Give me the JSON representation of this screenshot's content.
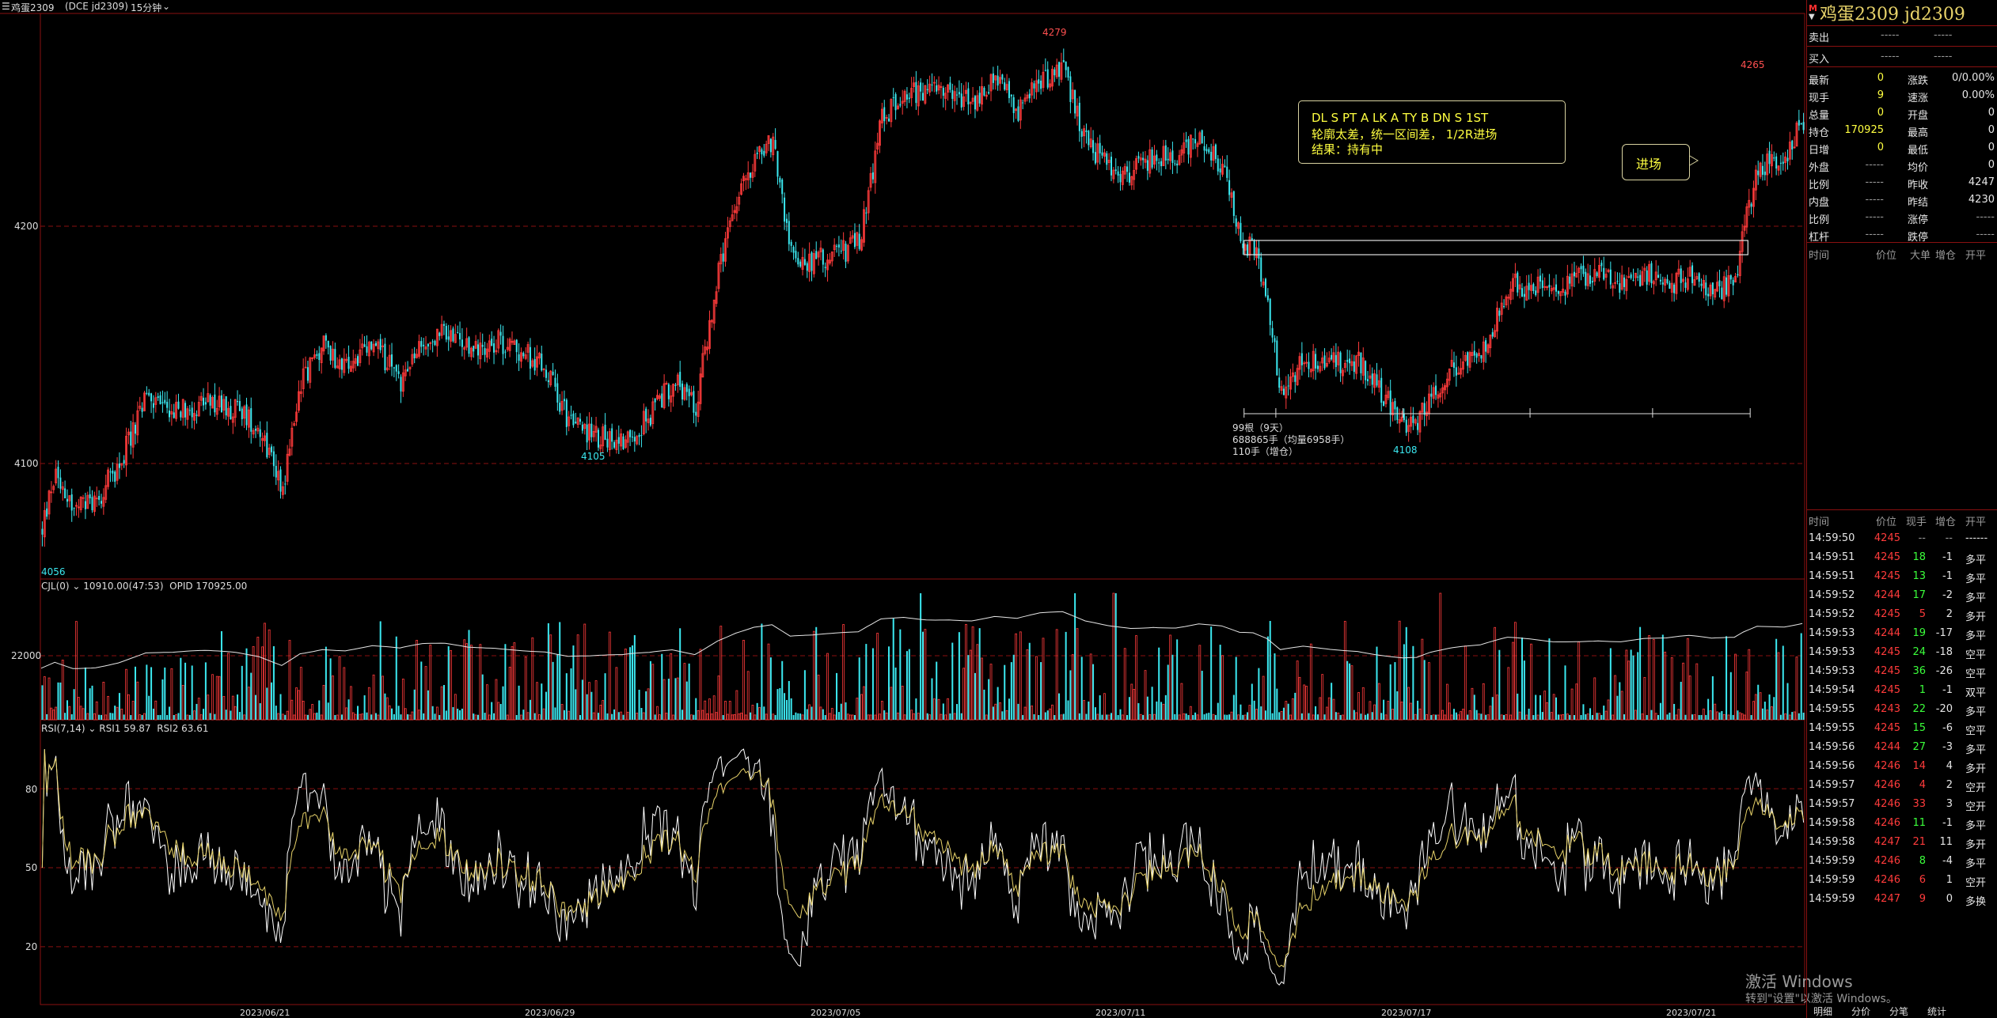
{
  "header": {
    "symbol": "鸡蛋2309",
    "exchange_code": "(DCE jd2309)",
    "period": "15分钟"
  },
  "main_chart": {
    "price_labels": [
      "4200",
      "4100"
    ],
    "extreme_labels": {
      "high1": "4279",
      "low1": "4105",
      "low2": "4108",
      "high2": "4265",
      "first": "4056"
    },
    "range_box_text": [
      "99根（9天）",
      "688865手（均量6958手）",
      "110手（增仓）"
    ],
    "annotation": {
      "line1": "DL S   PT A   LK A    TY B   DN S   1ST",
      "line2": "轮廓太差，统一区间差， 1/2R进场",
      "line3": "结果：持有中"
    },
    "entry_label": "进场",
    "chart_data": {
      "type": "candlestick",
      "ylim": [
        4050,
        4290
      ],
      "key_levels": {
        "range_top": 4194,
        "range_bottom": 4188
      },
      "waypoints": [
        [
          0,
          4072
        ],
        [
          6,
          4098
        ],
        [
          14,
          4080
        ],
        [
          24,
          4085
        ],
        [
          34,
          4100
        ],
        [
          46,
          4128
        ],
        [
          58,
          4122
        ],
        [
          72,
          4125
        ],
        [
          86,
          4123
        ],
        [
          96,
          4115
        ],
        [
          106,
          4090
        ],
        [
          114,
          4135
        ],
        [
          124,
          4150
        ],
        [
          134,
          4140
        ],
        [
          146,
          4150
        ],
        [
          158,
          4135
        ],
        [
          168,
          4150
        ],
        [
          178,
          4155
        ],
        [
          188,
          4148
        ],
        [
          200,
          4152
        ],
        [
          210,
          4148
        ],
        [
          222,
          4140
        ],
        [
          232,
          4118
        ],
        [
          242,
          4112
        ],
        [
          256,
          4110
        ],
        [
          268,
          4120
        ],
        [
          278,
          4135
        ],
        [
          288,
          4125
        ],
        [
          298,
          4180
        ],
        [
          306,
          4210
        ],
        [
          314,
          4230
        ],
        [
          322,
          4235
        ],
        [
          330,
          4188
        ],
        [
          340,
          4185
        ],
        [
          350,
          4188
        ],
        [
          360,
          4193
        ],
        [
          370,
          4245
        ],
        [
          380,
          4258
        ],
        [
          390,
          4255
        ],
        [
          400,
          4258
        ],
        [
          410,
          4252
        ],
        [
          420,
          4262
        ],
        [
          430,
          4248
        ],
        [
          440,
          4262
        ],
        [
          450,
          4265
        ],
        [
          460,
          4235
        ],
        [
          470,
          4225
        ],
        [
          480,
          4222
        ],
        [
          490,
          4230
        ],
        [
          500,
          4228
        ],
        [
          510,
          4238
        ],
        [
          520,
          4224
        ],
        [
          528,
          4195
        ],
        [
          534,
          4190
        ],
        [
          540,
          4168
        ],
        [
          546,
          4128
        ],
        [
          556,
          4145
        ],
        [
          568,
          4142
        ],
        [
          580,
          4142
        ],
        [
          590,
          4130
        ],
        [
          600,
          4118
        ],
        [
          606,
          4116
        ],
        [
          612,
          4130
        ],
        [
          622,
          4140
        ],
        [
          634,
          4145
        ],
        [
          646,
          4175
        ],
        [
          656,
          4175
        ],
        [
          666,
          4172
        ],
        [
          676,
          4178
        ],
        [
          686,
          4182
        ],
        [
          696,
          4175
        ],
        [
          706,
          4180
        ],
        [
          716,
          4175
        ],
        [
          726,
          4180
        ],
        [
          736,
          4170
        ],
        [
          746,
          4178
        ],
        [
          750,
          4200
        ],
        [
          756,
          4225
        ],
        [
          762,
          4228
        ],
        [
          768,
          4230
        ],
        [
          776,
          4245
        ]
      ],
      "visible_candles": 777
    }
  },
  "volume_panel": {
    "title": "CJL(0)",
    "value": "10910.00(47:53)",
    "opid": "OPID 170925.00",
    "axis_label": "22000"
  },
  "rsi_panel": {
    "title": "RSI(7,14)",
    "rsi1": "RSI1 59.87",
    "rsi2": "RSI2 63.61",
    "axis_labels": [
      "80",
      "50",
      "20"
    ]
  },
  "x_axis_dates": [
    "2023/06/21",
    "2023/06/29",
    "2023/07/05",
    "2023/07/11",
    "2023/07/17",
    "2023/07/21"
  ],
  "quote": {
    "title": "鸡蛋2309  jd2309",
    "m_mark": "M",
    "sell_label": "卖出",
    "buy_label": "买入",
    "dash": "-----",
    "rows": [
      {
        "l1": "最新",
        "v1": "0",
        "l2": "涨跌",
        "v2": "0/0.00%"
      },
      {
        "l1": "现手",
        "v1": "9",
        "l2": "速涨",
        "v2": "0.00%"
      },
      {
        "l1": "总量",
        "v1": "0",
        "l2": "开盘",
        "v2": "0"
      },
      {
        "l1": "持仓",
        "v1": "170925",
        "l2": "最高",
        "v2": "0"
      },
      {
        "l1": "日增",
        "v1": "0",
        "l2": "最低",
        "v2": "0"
      },
      {
        "l1": "外盘",
        "v1": "-----",
        "l2": "均价",
        "v2": "0"
      },
      {
        "l1": "比例",
        "v1": "-----",
        "l2": "昨收",
        "v2": "4247"
      },
      {
        "l1": "内盘",
        "v1": "-----",
        "l2": "昨结",
        "v2": "4230"
      },
      {
        "l1": "比例",
        "v1": "-----",
        "l2": "涨停",
        "v2": "-----"
      },
      {
        "l1": "杠杆",
        "v1": "-----",
        "l2": "跌停",
        "v2": "-----"
      }
    ]
  },
  "trades_header": {
    "time": "时间",
    "price": "价位",
    "vol": "大单",
    "add": "增仓",
    "type": "开平"
  },
  "ticks_header": {
    "time": "时间",
    "price": "价位",
    "vol": "现手",
    "add": "增仓",
    "type": "开平"
  },
  "ticks": [
    {
      "t": "14:59:50",
      "p": "4245",
      "v": "--",
      "a": "--",
      "k": "------"
    },
    {
      "t": "14:59:51",
      "p": "4245",
      "v": "18",
      "a": "-1",
      "k": "多平"
    },
    {
      "t": "14:59:51",
      "p": "4245",
      "v": "13",
      "a": "-1",
      "k": "多平"
    },
    {
      "t": "14:59:52",
      "p": "4244",
      "v": "17",
      "a": "-2",
      "k": "多平"
    },
    {
      "t": "14:59:52",
      "p": "4245",
      "v": "5",
      "a": "2",
      "k": "多开"
    },
    {
      "t": "14:59:53",
      "p": "4244",
      "v": "19",
      "a": "-17",
      "k": "多平"
    },
    {
      "t": "14:59:53",
      "p": "4245",
      "v": "24",
      "a": "-18",
      "k": "空平"
    },
    {
      "t": "14:59:53",
      "p": "4245",
      "v": "36",
      "a": "-26",
      "k": "空平"
    },
    {
      "t": "14:59:54",
      "p": "4245",
      "v": "1",
      "a": "-1",
      "k": "双平"
    },
    {
      "t": "14:59:55",
      "p": "4243",
      "v": "22",
      "a": "-20",
      "k": "多平"
    },
    {
      "t": "14:59:55",
      "p": "4245",
      "v": "15",
      "a": "-6",
      "k": "空平"
    },
    {
      "t": "14:59:56",
      "p": "4244",
      "v": "27",
      "a": "-3",
      "k": "多平"
    },
    {
      "t": "14:59:56",
      "p": "4246",
      "v": "14",
      "a": "4",
      "k": "多开"
    },
    {
      "t": "14:59:57",
      "p": "4246",
      "v": "4",
      "a": "2",
      "k": "空开"
    },
    {
      "t": "14:59:57",
      "p": "4246",
      "v": "33",
      "a": "3",
      "k": "空开"
    },
    {
      "t": "14:59:58",
      "p": "4246",
      "v": "11",
      "a": "-1",
      "k": "多平"
    },
    {
      "t": "14:59:58",
      "p": "4247",
      "v": "21",
      "a": "11",
      "k": "多开"
    },
    {
      "t": "14:59:59",
      "p": "4246",
      "v": "8",
      "a": "-4",
      "k": "多平"
    },
    {
      "t": "14:59:59",
      "p": "4246",
      "v": "6",
      "a": "1",
      "k": "空开"
    },
    {
      "t": "14:59:59",
      "p": "4247",
      "v": "9",
      "a": "0",
      "k": "多换"
    }
  ],
  "bottom_tabs": [
    "明细",
    "分价",
    "分笔",
    "统计"
  ],
  "watermark": {
    "line1": "激活 Windows",
    "line2": "转到\"设置\"以激活 Windows。"
  },
  "colors": {
    "up": "#ff3b3b",
    "down": "#3be8f0",
    "grid": "#8a1010",
    "rsi1": "#ffffff",
    "rsi2": "#e8d36a"
  }
}
